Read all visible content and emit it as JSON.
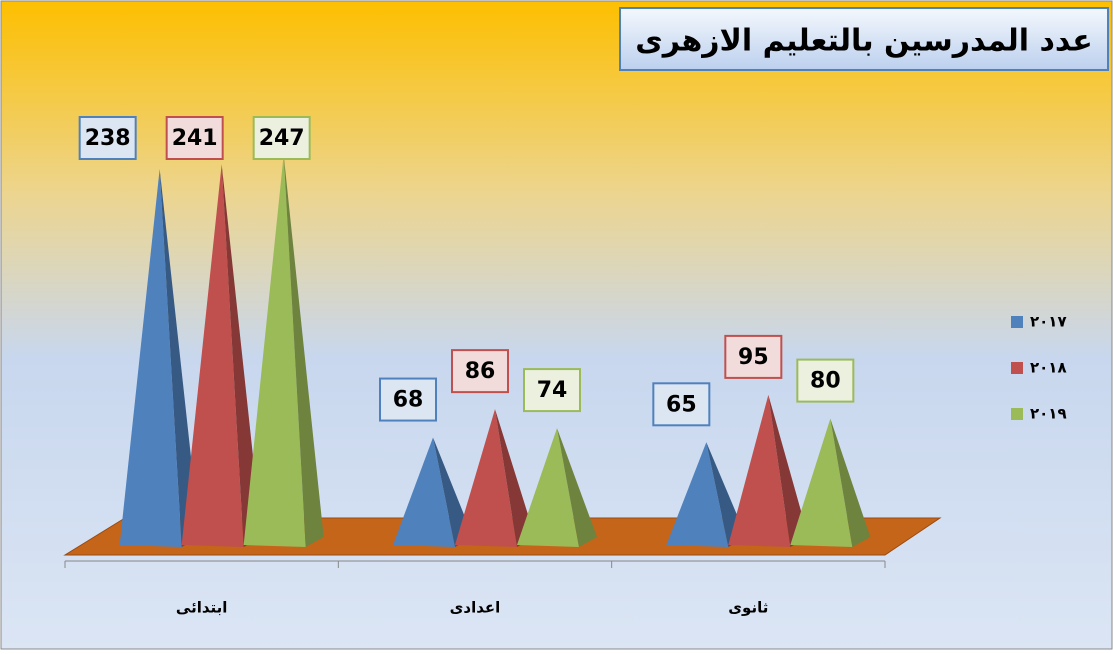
{
  "chart_data": {
    "type": "pyramid",
    "title": "عدد المدرسين بالتعليم الازهرى",
    "categories": [
      "ابتدائى",
      "اعدادى",
      "ثانوى"
    ],
    "series": [
      {
        "name": "٢٠١٧",
        "color": "#4f81bd",
        "values": [
          238,
          68,
          65
        ]
      },
      {
        "name": "٢٠١٨",
        "color": "#c0504d",
        "values": [
          241,
          86,
          95
        ]
      },
      {
        "name": "٢٠١٩",
        "color": "#9bbb59",
        "values": [
          247,
          74,
          80
        ]
      }
    ],
    "legend": "right"
  }
}
